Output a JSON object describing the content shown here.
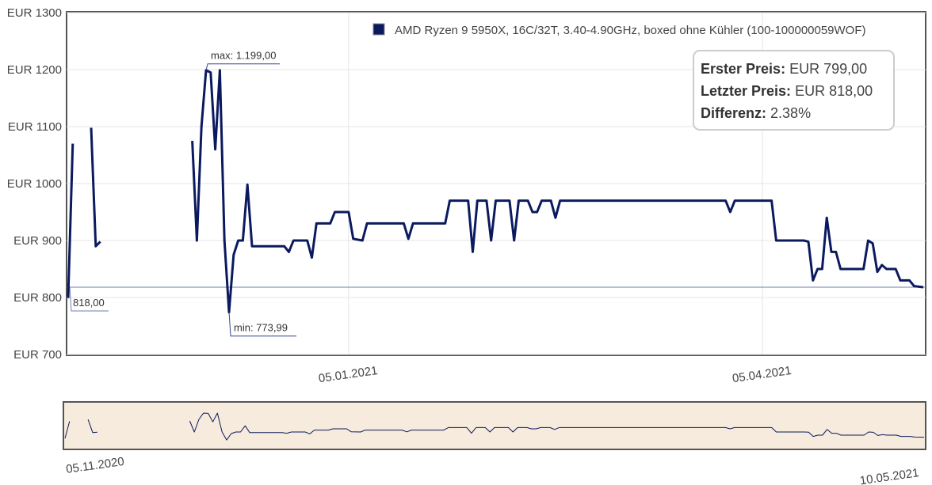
{
  "chart_data": {
    "type": "line",
    "x": [
      "05.11.2020",
      "06.11.2020",
      "08.11.2020",
      "10.11.2020",
      "11.11.2020",
      "12.11.2020",
      "15.11.2020",
      "02.12.2020",
      "03.12.2020",
      "04.12.2020",
      "05.12.2020",
      "06.12.2020",
      "07.12.2020",
      "08.12.2020",
      "09.12.2020",
      "10.12.2020",
      "11.12.2020",
      "12.12.2020",
      "13.12.2020",
      "14.12.2020",
      "15.12.2020",
      "22.12.2020",
      "23.12.2020",
      "24.12.2020",
      "27.12.2020",
      "28.12.2020",
      "29.12.2020",
      "01.01.2021",
      "02.01.2021",
      "05.01.2021",
      "06.01.2021",
      "08.01.2021",
      "09.01.2021",
      "17.01.2021",
      "18.01.2021",
      "19.01.2021",
      "26.01.2021",
      "27.01.2021",
      "31.01.2021",
      "01.02.2021",
      "02.02.2021",
      "04.02.2021",
      "05.02.2021",
      "06.02.2021",
      "09.02.2021",
      "10.02.2021",
      "11.02.2021",
      "13.02.2021",
      "14.02.2021",
      "15.02.2021",
      "16.02.2021",
      "18.02.2021",
      "19.02.2021",
      "20.02.2021",
      "28.03.2021",
      "29.03.2021",
      "30.03.2021",
      "07.04.2021",
      "08.04.2021",
      "14.04.2021",
      "15.04.2021",
      "16.04.2021",
      "17.04.2021",
      "18.04.2021",
      "19.04.2021",
      "20.04.2021",
      "21.04.2021",
      "22.04.2021",
      "27.04.2021",
      "28.04.2021",
      "29.04.2021",
      "30.04.2021",
      "01.05.2021",
      "02.05.2021",
      "04.05.2021",
      "05.05.2021",
      "07.05.2021",
      "08.05.2021",
      "10.05.2021"
    ],
    "series": [
      {
        "name": "AMD Ryzen 9 5950X, 16C/32T, 3.40-4.90GHz, boxed ohne Kühler (100-100000059WOF)",
        "color": "#0b1a5e",
        "values": [
          799,
          1070,
          null,
          1098,
          890,
          898,
          null,
          1075,
          900,
          1100,
          1199,
          1195,
          1060,
          1199,
          900,
          773.99,
          875,
          900,
          900,
          998,
          890,
          890,
          880,
          900,
          900,
          870,
          930,
          930,
          950,
          950,
          903,
          900,
          930,
          930,
          903,
          930,
          930,
          970,
          970,
          880,
          970,
          970,
          900,
          970,
          970,
          900,
          970,
          970,
          950,
          950,
          970,
          970,
          940,
          970,
          970,
          950,
          970,
          970,
          900,
          900,
          898,
          830,
          850,
          850,
          940,
          880,
          880,
          850,
          850,
          900,
          895,
          845,
          857,
          850,
          850,
          830,
          830,
          820,
          818
        ]
      }
    ],
    "xlim": [
      "05.11.2020",
      "10.05.2021"
    ],
    "xticks": [
      "05.01.2021",
      "05.04.2021"
    ],
    "ylim": [
      700,
      1300
    ],
    "yticks": [
      {
        "value": 700,
        "label": "EUR 700"
      },
      {
        "value": 800,
        "label": "EUR 800"
      },
      {
        "value": 900,
        "label": "EUR 900"
      },
      {
        "value": 1000,
        "label": "EUR 1000"
      },
      {
        "value": 1100,
        "label": "EUR 1100"
      },
      {
        "value": 1200,
        "label": "EUR 1200"
      },
      {
        "value": 1300,
        "label": "EUR 1300"
      }
    ],
    "grid": true,
    "reference_line": {
      "value": 818,
      "label": "818,00",
      "color": "#6c7fae"
    },
    "annotations": [
      {
        "x": "05.12.2020",
        "value": 1199,
        "label": "max: 1.199,00"
      },
      {
        "x": "10.12.2020",
        "value": 773.99,
        "label": "min: 773,99"
      }
    ],
    "summary": [
      {
        "label": "Erster Preis:",
        "value": "EUR 799,00"
      },
      {
        "label": "Letzter Preis:",
        "value": "EUR 818,00"
      },
      {
        "label": "Differenz:",
        "value": "2.38%"
      }
    ]
  }
}
